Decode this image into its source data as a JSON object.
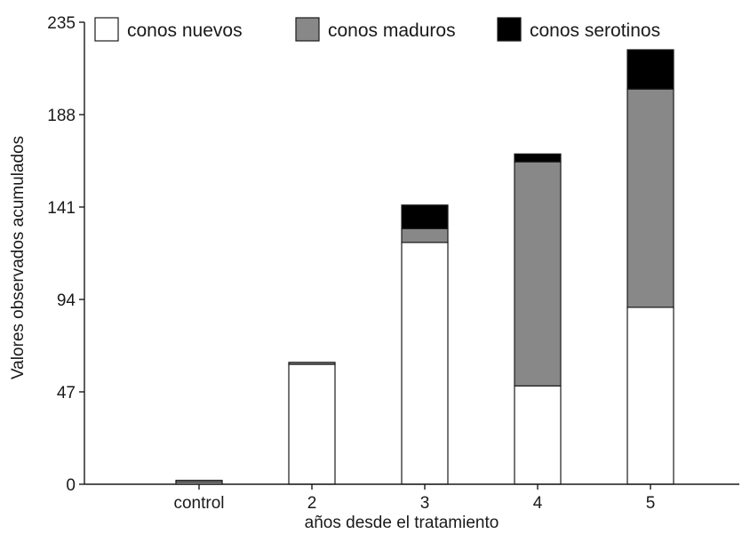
{
  "chart_data": {
    "type": "bar",
    "stacked": true,
    "title": "",
    "xlabel": "años desde el tratamiento",
    "ylabel": "Valores observados acumulados",
    "ylim": [
      0,
      235
    ],
    "yticks": [
      0,
      47,
      94,
      141,
      188,
      235
    ],
    "categories": [
      "control",
      "2",
      "3",
      "4",
      "5"
    ],
    "series": [
      {
        "name": "conos nuevos",
        "color": "#ffffff",
        "values": [
          1,
          61,
          123,
          50,
          90
        ]
      },
      {
        "name": "conos maduros",
        "color": "#888888",
        "values": [
          1,
          1,
          7,
          114,
          111
        ]
      },
      {
        "name": "conos serotinos",
        "color": "#000000",
        "values": [
          0,
          0,
          12,
          4,
          20
        ]
      }
    ],
    "legend_position": "top",
    "grid": false
  }
}
